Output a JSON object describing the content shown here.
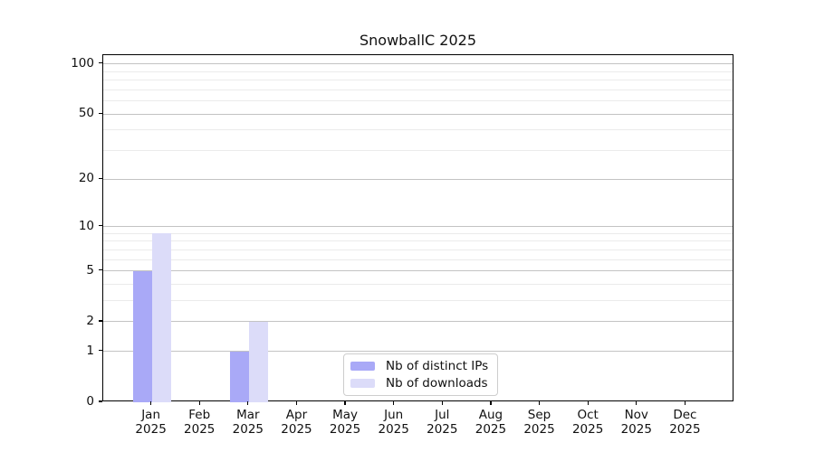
{
  "chart_data": {
    "type": "bar",
    "title": "SnowballC 2025",
    "categories": [
      "Jan",
      "Feb",
      "Mar",
      "Apr",
      "May",
      "Jun",
      "Jul",
      "Aug",
      "Sep",
      "Oct",
      "Nov",
      "Dec"
    ],
    "x_sublabel": "2025",
    "series": [
      {
        "name": "Nb of distinct IPs",
        "color": "#a9a9f7",
        "values": [
          5,
          0,
          1,
          0,
          0,
          0,
          0,
          0,
          0,
          0,
          0,
          0
        ]
      },
      {
        "name": "Nb of downloads",
        "color": "#dcdcf9",
        "values": [
          9,
          0,
          2,
          0,
          0,
          0,
          0,
          0,
          0,
          0,
          0,
          0
        ]
      }
    ],
    "yscale": "log1p",
    "ylim": [
      0,
      113
    ],
    "yticks": [
      0,
      1,
      2,
      5,
      10,
      20,
      50,
      100
    ],
    "minor_gridlines": [
      3,
      4,
      6,
      7,
      8,
      9,
      30,
      40,
      60,
      70,
      80,
      90
    ],
    "grid": true,
    "legend_position": "lower center",
    "colors": {
      "axis": "#000000",
      "major_grid": "#c3c3c3",
      "minor_grid": "#ebebeb",
      "background": "#ffffff"
    }
  }
}
